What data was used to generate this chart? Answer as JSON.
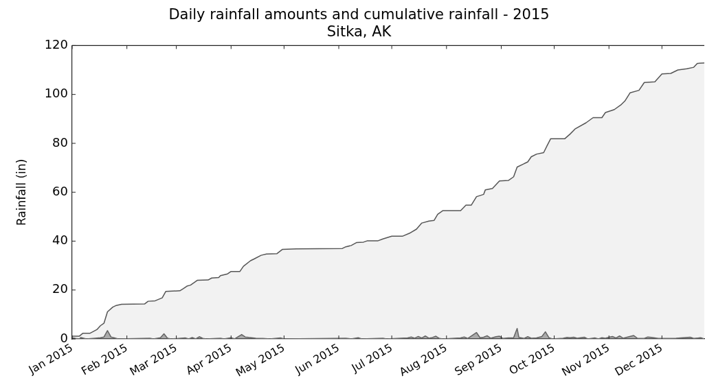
{
  "chart_data": {
    "type": "area",
    "title": "Daily rainfall amounts and cumulative rainfall - 2015",
    "subtitle": "Sitka, AK",
    "ylabel": "Rainfall (in)",
    "xlim": [
      "2015-01-01",
      "2015-12-25"
    ],
    "xticks": [
      {
        "value": "2015-01-01",
        "label": "Jan 2015"
      },
      {
        "value": "2015-02-01",
        "label": "Feb 2015"
      },
      {
        "value": "2015-03-01",
        "label": "Mar 2015"
      },
      {
        "value": "2015-04-01",
        "label": "Apr 2015"
      },
      {
        "value": "2015-05-01",
        "label": "May 2015"
      },
      {
        "value": "2015-06-01",
        "label": "Jun 2015"
      },
      {
        "value": "2015-07-01",
        "label": "Jul 2015"
      },
      {
        "value": "2015-08-01",
        "label": "Aug 2015"
      },
      {
        "value": "2015-09-01",
        "label": "Sep 2015"
      },
      {
        "value": "2015-10-01",
        "label": "Oct 2015"
      },
      {
        "value": "2015-11-01",
        "label": "Nov 2015"
      },
      {
        "value": "2015-12-01",
        "label": "Dec 2015"
      }
    ],
    "ylim": [
      0,
      120
    ],
    "yticks": [
      0,
      20,
      40,
      60,
      80,
      100,
      120
    ],
    "grid": false,
    "legend": false,
    "series": [
      {
        "color": "#555555",
        "x": [
          "2015-01-01",
          "2015-01-05",
          "2015-01-07",
          "2015-01-11",
          "2015-01-15",
          "2015-01-17",
          "2015-01-19",
          "2015-01-21",
          "2015-01-24",
          "2015-01-26",
          "2015-01-29",
          "2015-02-11",
          "2015-02-13",
          "2015-02-17",
          "2015-02-21",
          "2015-02-23",
          "2015-03-03",
          "2015-03-05",
          "2015-03-07",
          "2015-03-09",
          "2015-03-13",
          "2015-03-19",
          "2015-03-21",
          "2015-03-25",
          "2015-03-26",
          "2015-03-30",
          "2015-04-01",
          "2015-04-06",
          "2015-04-08",
          "2015-04-12",
          "2015-04-14",
          "2015-04-18",
          "2015-04-21",
          "2015-04-27",
          "2015-04-30",
          "2015-05-08",
          "2015-06-03",
          "2015-06-05",
          "2015-06-08",
          "2015-06-11",
          "2015-06-15",
          "2015-06-17",
          "2015-06-23",
          "2015-06-26",
          "2015-07-01",
          "2015-07-07",
          "2015-07-11",
          "2015-07-15",
          "2015-07-18",
          "2015-07-22",
          "2015-07-25",
          "2015-07-27",
          "2015-07-30",
          "2015-08-09",
          "2015-08-12",
          "2015-08-15",
          "2015-08-18",
          "2015-08-22",
          "2015-08-23",
          "2015-08-27",
          "2015-08-31",
          "2015-09-05",
          "2015-09-08",
          "2015-09-10",
          "2015-09-16",
          "2015-09-18",
          "2015-09-21",
          "2015-09-25",
          "2015-09-27",
          "2015-09-29",
          "2015-10-07",
          "2015-10-10",
          "2015-10-13",
          "2015-10-19",
          "2015-10-23",
          "2015-10-28",
          "2015-10-30",
          "2015-11-04",
          "2015-11-08",
          "2015-11-10",
          "2015-11-13",
          "2015-11-18",
          "2015-11-21",
          "2015-11-27",
          "2015-12-01",
          "2015-12-06",
          "2015-12-10",
          "2015-12-15",
          "2015-12-19",
          "2015-12-21",
          "2015-12-25"
        ],
        "values": [
          1.1,
          1.1,
          2.3,
          2.3,
          3.8,
          5.4,
          6.4,
          11.1,
          13.0,
          13.7,
          14.2,
          14.3,
          15.4,
          15.6,
          16.8,
          19.4,
          19.7,
          20.6,
          21.6,
          22.0,
          24.0,
          24.1,
          24.9,
          25.1,
          25.9,
          26.6,
          27.6,
          27.6,
          29.7,
          32.0,
          32.7,
          34.2,
          34.7,
          34.9,
          36.6,
          36.8,
          37.0,
          37.7,
          38.2,
          39.4,
          39.6,
          40.1,
          40.1,
          40.9,
          42.0,
          42.0,
          43.2,
          44.9,
          47.4,
          48.2,
          48.5,
          51.0,
          52.5,
          52.5,
          54.7,
          54.7,
          58.2,
          59.1,
          61.0,
          61.5,
          64.6,
          64.8,
          66.3,
          70.3,
          72.4,
          74.5,
          75.6,
          76.2,
          79.1,
          81.9,
          81.9,
          83.8,
          86.0,
          88.4,
          90.5,
          90.5,
          92.6,
          93.8,
          95.9,
          97.3,
          100.7,
          101.7,
          104.9,
          105.2,
          108.4,
          108.6,
          110.0,
          110.5,
          111.1,
          112.7,
          112.9
        ]
      },
      {
        "color": "#666666",
        "x": [
          "2015-01-01",
          "2015-01-03",
          "2015-01-05",
          "2015-01-06",
          "2015-01-09",
          "2015-01-14",
          "2015-01-17",
          "2015-01-19",
          "2015-01-21",
          "2015-01-23",
          "2015-01-25",
          "2015-01-27",
          "2015-02-14",
          "2015-02-16",
          "2015-02-20",
          "2015-02-22",
          "2015-02-24",
          "2015-02-26",
          "2015-03-06",
          "2015-03-08",
          "2015-03-10",
          "2015-03-12",
          "2015-03-14",
          "2015-03-16",
          "2015-03-18",
          "2015-03-26",
          "2015-03-28",
          "2015-04-01",
          "2015-04-03",
          "2015-04-07",
          "2015-04-09",
          "2015-04-11",
          "2015-04-15",
          "2015-04-19",
          "2015-04-23",
          "2015-04-29",
          "2015-05-01",
          "2015-06-05",
          "2015-06-08",
          "2015-06-12",
          "2015-06-14",
          "2015-06-26",
          "2015-06-28",
          "2015-07-10",
          "2015-07-12",
          "2015-07-14",
          "2015-07-16",
          "2015-07-18",
          "2015-07-20",
          "2015-07-22",
          "2015-07-24",
          "2015-07-26",
          "2015-07-28",
          "2015-07-30",
          "2015-08-09",
          "2015-08-11",
          "2015-08-13",
          "2015-08-18",
          "2015-08-20",
          "2015-08-22",
          "2015-08-24",
          "2015-08-26",
          "2015-08-29",
          "2015-08-31",
          "2015-09-02",
          "2015-09-05",
          "2015-09-08",
          "2015-09-10",
          "2015-09-11",
          "2015-09-14",
          "2015-09-16",
          "2015-09-18",
          "2015-09-21",
          "2015-09-24",
          "2015-09-26",
          "2015-09-28",
          "2015-09-30",
          "2015-10-06",
          "2015-10-08",
          "2015-10-10",
          "2015-10-12",
          "2015-10-14",
          "2015-10-16",
          "2015-10-18",
          "2015-10-20",
          "2015-10-24",
          "2015-10-26",
          "2015-10-28",
          "2015-10-30",
          "2015-11-01",
          "2015-11-03",
          "2015-11-05",
          "2015-11-07",
          "2015-11-09",
          "2015-11-15",
          "2015-11-17",
          "2015-11-21",
          "2015-11-23",
          "2015-11-25",
          "2015-11-29",
          "2015-12-05",
          "2015-12-09",
          "2015-12-17",
          "2015-12-19",
          "2015-12-23",
          "2015-12-25"
        ],
        "values": [
          0.5,
          0.2,
          0,
          0.6,
          0,
          0.3,
          0.5,
          0.8,
          3.4,
          0.8,
          0.4,
          0,
          0.3,
          0,
          0.5,
          2.1,
          0.3,
          0,
          0.4,
          0,
          0.6,
          0,
          0.9,
          0.2,
          0,
          0.3,
          0,
          0.5,
          0,
          1.8,
          0.8,
          0.6,
          0.3,
          0.2,
          0,
          0.4,
          0,
          0.3,
          0,
          0.5,
          0,
          0.3,
          0,
          0.4,
          0.8,
          0.3,
          1.0,
          0.4,
          1.2,
          0.3,
          0.6,
          1.1,
          0.2,
          0,
          0.4,
          0.8,
          0.2,
          2.6,
          0.5,
          0.7,
          1.3,
          0.3,
          0.9,
          1.1,
          0.2,
          0.4,
          0.5,
          4.3,
          0.6,
          0.2,
          0.9,
          0.3,
          0.4,
          1.0,
          2.9,
          0.5,
          0,
          0.3,
          0.6,
          0.5,
          0.7,
          0.3,
          0.5,
          0.7,
          0,
          0.4,
          0,
          0.5,
          0.3,
          0.7,
          1.0,
          0.4,
          1.2,
          0.3,
          1.4,
          0.3,
          0.2,
          0.8,
          0.6,
          0.2,
          0.2,
          0.3,
          0.7,
          0.2,
          0.5,
          0
        ]
      }
    ]
  }
}
